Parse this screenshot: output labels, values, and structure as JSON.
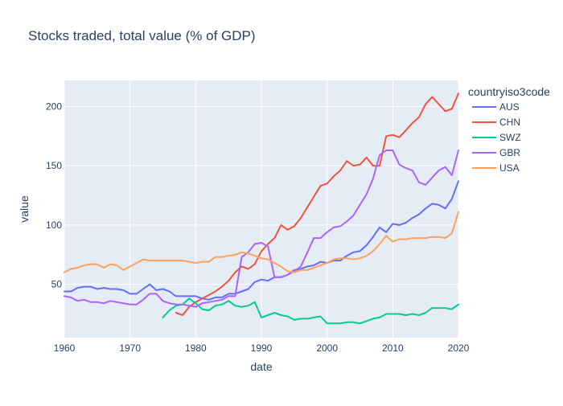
{
  "chart_data": {
    "type": "line",
    "title": "Stocks traded, total value (% of GDP)",
    "xlabel": "date",
    "ylabel": "value",
    "xlim": [
      1960,
      2020
    ],
    "ylim": [
      5,
      222
    ],
    "x_ticks": [
      1960,
      1970,
      1980,
      1990,
      2000,
      2010,
      2020
    ],
    "y_ticks": [
      50,
      100,
      150,
      200
    ],
    "grid": true,
    "legend": {
      "title": "countryiso3code",
      "placement": "right"
    },
    "series": [
      {
        "name": "AUS",
        "color": "#636efa",
        "x": [
          1960,
          1961,
          1962,
          1963,
          1964,
          1965,
          1966,
          1967,
          1968,
          1969,
          1970,
          1971,
          1972,
          1973,
          1974,
          1975,
          1976,
          1977,
          1978,
          1979,
          1980,
          1981,
          1982,
          1983,
          1984,
          1985,
          1986,
          1987,
          1988,
          1989,
          1990,
          1991,
          1992,
          1993,
          1994,
          1995,
          1996,
          1997,
          1998,
          1999,
          2000,
          2001,
          2002,
          2003,
          2004,
          2005,
          2006,
          2007,
          2008,
          2009,
          2010,
          2011,
          2012,
          2013,
          2014,
          2015,
          2016,
          2017,
          2018,
          2019,
          2020
        ],
        "values": [
          44,
          44,
          47,
          48,
          48,
          46,
          47,
          46,
          46,
          45,
          42,
          42,
          46,
          50,
          45,
          46,
          44,
          40,
          40,
          40,
          40,
          38,
          37,
          39,
          39,
          42,
          42,
          44,
          46,
          52,
          54,
          53,
          56,
          56,
          58,
          62,
          63,
          65,
          66,
          69,
          68,
          70,
          70,
          74,
          77,
          78,
          83,
          90,
          98,
          94,
          101,
          100,
          102,
          106,
          109,
          114,
          118,
          117,
          114,
          122,
          137
        ]
      },
      {
        "name": "CHN",
        "color": "#ef553b",
        "x": [
          1977,
          1978,
          1979,
          1980,
          1981,
          1982,
          1983,
          1984,
          1985,
          1986,
          1987,
          1988,
          1989,
          1990,
          1991,
          1992,
          1993,
          1994,
          1995,
          1996,
          1997,
          1998,
          1999,
          2000,
          2001,
          2002,
          2003,
          2004,
          2005,
          2006,
          2007,
          2008,
          2009,
          2010,
          2011,
          2012,
          2013,
          2014,
          2015,
          2016,
          2017,
          2018,
          2019,
          2020
        ],
        "values": [
          26,
          24,
          31,
          35,
          38,
          41,
          44,
          48,
          53,
          60,
          65,
          63,
          67,
          78,
          84,
          89,
          100,
          96,
          99,
          106,
          115,
          124,
          133,
          135,
          141,
          146,
          154,
          150,
          151,
          157,
          150,
          150,
          175,
          176,
          174,
          180,
          186,
          191,
          202,
          208,
          202,
          196,
          198,
          211
        ]
      },
      {
        "name": "SWZ",
        "color": "#00cc96",
        "x": [
          1975,
          1976,
          1977,
          1978,
          1979,
          1980,
          1981,
          1982,
          1983,
          1984,
          1985,
          1986,
          1987,
          1988,
          1989,
          1990,
          1991,
          1992,
          1993,
          1994,
          1995,
          1996,
          1997,
          1998,
          1999,
          2000,
          2001,
          2002,
          2003,
          2004,
          2005,
          2006,
          2007,
          2008,
          2009,
          2010,
          2011,
          2012,
          2013,
          2014,
          2015,
          2016,
          2017,
          2018,
          2019,
          2020
        ],
        "values": [
          22,
          28,
          32,
          33,
          38,
          34,
          29,
          28,
          32,
          33,
          36,
          32,
          31,
          32,
          35,
          22,
          24,
          26,
          24,
          23,
          20,
          21,
          21,
          22,
          23,
          17,
          17,
          17,
          18,
          18,
          17,
          19,
          21,
          22,
          25,
          25,
          25,
          24,
          25,
          24,
          26,
          30,
          30,
          30,
          29,
          33
        ]
      },
      {
        "name": "GBR",
        "color": "#ab63fa",
        "x": [
          1960,
          1961,
          1962,
          1963,
          1964,
          1965,
          1966,
          1967,
          1968,
          1969,
          1970,
          1971,
          1972,
          1973,
          1974,
          1975,
          1976,
          1977,
          1978,
          1979,
          1980,
          1981,
          1982,
          1983,
          1984,
          1985,
          1986,
          1987,
          1988,
          1989,
          1990,
          1991,
          1992,
          1993,
          1994,
          1995,
          1996,
          1997,
          1998,
          1999,
          2000,
          2001,
          2002,
          2003,
          2004,
          2005,
          2006,
          2007,
          2008,
          2009,
          2010,
          2011,
          2012,
          2013,
          2014,
          2015,
          2016,
          2017,
          2018,
          2019,
          2020
        ],
        "values": [
          40,
          39,
          36,
          37,
          35,
          35,
          34,
          36,
          35,
          34,
          33,
          33,
          37,
          42,
          42,
          36,
          34,
          33,
          33,
          32,
          31,
          34,
          35,
          36,
          37,
          40,
          40,
          73,
          77,
          84,
          85,
          82,
          56,
          56,
          58,
          61,
          65,
          77,
          89,
          89,
          94,
          98,
          99,
          103,
          108,
          117,
          126,
          139,
          159,
          163,
          163,
          151,
          148,
          146,
          136,
          134,
          140,
          146,
          149,
          142,
          163
        ]
      },
      {
        "name": "USA",
        "color": "#ffa15a",
        "x": [
          1960,
          1961,
          1962,
          1963,
          1964,
          1965,
          1966,
          1967,
          1968,
          1969,
          1970,
          1971,
          1972,
          1973,
          1974,
          1975,
          1976,
          1977,
          1978,
          1979,
          1980,
          1981,
          1982,
          1983,
          1984,
          1985,
          1986,
          1987,
          1988,
          1989,
          1990,
          1991,
          1992,
          1993,
          1994,
          1995,
          1996,
          1997,
          1998,
          1999,
          2000,
          2001,
          2002,
          2003,
          2004,
          2005,
          2006,
          2007,
          2008,
          2009,
          2010,
          2011,
          2012,
          2013,
          2014,
          2015,
          2016,
          2017,
          2018,
          2019,
          2020
        ],
        "values": [
          60,
          63,
          64,
          66,
          67,
          67,
          64,
          67,
          66,
          62,
          65,
          68,
          71,
          70,
          70,
          70,
          70,
          70,
          70,
          69,
          68,
          69,
          69,
          73,
          73,
          74,
          75,
          77,
          76,
          74,
          72,
          71,
          68,
          65,
          61,
          60,
          62,
          62,
          64,
          66,
          68,
          71,
          72,
          72,
          71,
          72,
          74,
          78,
          84,
          91,
          86,
          88,
          88,
          89,
          89,
          89,
          90,
          90,
          89,
          93,
          111
        ]
      }
    ]
  }
}
